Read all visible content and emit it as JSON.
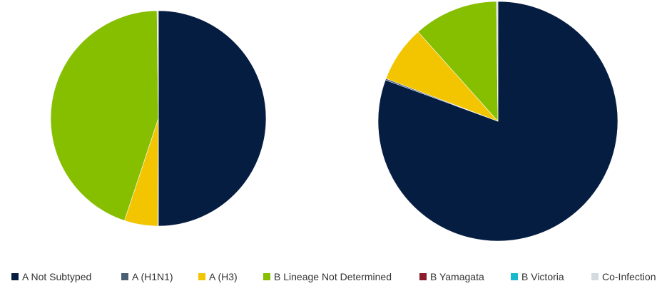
{
  "chart_data": [
    {
      "type": "pie",
      "title": "",
      "categories": [
        "A Not Subtyped",
        "A (H1N1)",
        "A (H3)",
        "B Lineage Not Determined",
        "B Yamagata",
        "B Victoria",
        "Co-Infection"
      ],
      "values": [
        50.0,
        0.1,
        5.0,
        44.7,
        0.0,
        0.0,
        0.2
      ],
      "unit": "%"
    },
    {
      "type": "pie",
      "title": "",
      "categories": [
        "A Not Subtyped",
        "A (H1N1)",
        "A (H3)",
        "B Lineage Not Determined",
        "B Yamagata",
        "B Victoria",
        "Co-Infection"
      ],
      "values": [
        80.6,
        0.2,
        7.6,
        11.4,
        0.0,
        0.0,
        0.2
      ],
      "unit": "%"
    }
  ],
  "legend": [
    {
      "label": "A Not Subtyped",
      "color": "#061d42"
    },
    {
      "label": "A (H1N1)",
      "color": "#4a5f73"
    },
    {
      "label": "A (H3)",
      "color": "#f2c500"
    },
    {
      "label": "B Lineage Not Determined",
      "color": "#86be00"
    },
    {
      "label": "B Yamagata",
      "color": "#8b1c2c"
    },
    {
      "label": "B Victoria",
      "color": "#17b9cc"
    },
    {
      "label": "Co-Infection",
      "color": "#d4dbe0"
    }
  ]
}
